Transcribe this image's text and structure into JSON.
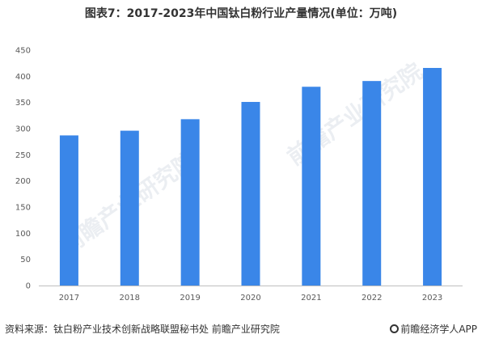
{
  "title": "图表7：2017-2023年中国钛白粉行业产量情况(单位：万吨)",
  "source": "资料来源：钛白粉产业技术创新战略联盟秘书处 前瞻产业研究院",
  "brand": "前瞻经济学人APP",
  "watermark_text": "前瞻产业研究院",
  "colors": {
    "bar": "#3a86e8",
    "axis": "#bfbfbf",
    "text": "#595959"
  },
  "chart_data": {
    "type": "bar",
    "title": "图表7：2017-2023年中国钛白粉行业产量情况(单位：万吨)",
    "xlabel": "",
    "ylabel": "",
    "categories": [
      "2017",
      "2018",
      "2019",
      "2020",
      "2021",
      "2022",
      "2023"
    ],
    "values": [
      287,
      296,
      318,
      351,
      380,
      391,
      416
    ],
    "ylim": [
      0,
      450
    ],
    "yticks": [
      "0",
      "50",
      "100",
      "150",
      "200",
      "250",
      "300",
      "350",
      "400",
      "450"
    ],
    "grid": false,
    "legend": "none"
  }
}
